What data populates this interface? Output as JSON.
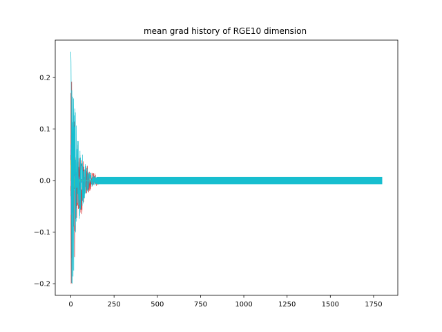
{
  "chart_data": {
    "type": "line",
    "title": "mean grad history of RGE10 dimension",
    "xlabel": "",
    "ylabel": "",
    "xlim": [
      -90,
      1890
    ],
    "ylim": [
      -0.2225,
      0.2725
    ],
    "xticks": [
      0,
      250,
      500,
      750,
      1000,
      1250,
      1500,
      1750
    ],
    "xtick_labels": [
      "0",
      "250",
      "500",
      "750",
      "1000",
      "1250",
      "1500",
      "1750"
    ],
    "yticks": [
      -0.2,
      -0.1,
      0.0,
      0.1,
      0.2
    ],
    "ytick_labels": [
      "−0.2",
      "−0.1",
      "0.0",
      "0.1",
      "0.2"
    ],
    "grid": false,
    "n_points": 1800,
    "series": [
      {
        "color": "#1f77b4",
        "start": 0.06,
        "decay": 20
      },
      {
        "color": "#ff7f0e",
        "start": 0.04,
        "decay": 20
      },
      {
        "color": "#2ca02c",
        "start": -0.03,
        "decay": 20
      },
      {
        "color": "#d62728",
        "start": 0.17,
        "decay": 45
      },
      {
        "color": "#9467bd",
        "start": 0.07,
        "decay": 22
      },
      {
        "color": "#8c564b",
        "start": 0.05,
        "decay": 20
      },
      {
        "color": "#e377c2",
        "start": 0.03,
        "decay": 20
      },
      {
        "color": "#7f7f7f",
        "start": 0.02,
        "decay": 20
      },
      {
        "color": "#bcbd22",
        "start": 0.04,
        "decay": 18
      },
      {
        "color": "#17becf",
        "start": 0.25,
        "decay": 40
      }
    ],
    "band": {
      "color": "#17becf",
      "x_start": 150,
      "x_end": 1800,
      "half_width": 0.007
    }
  }
}
